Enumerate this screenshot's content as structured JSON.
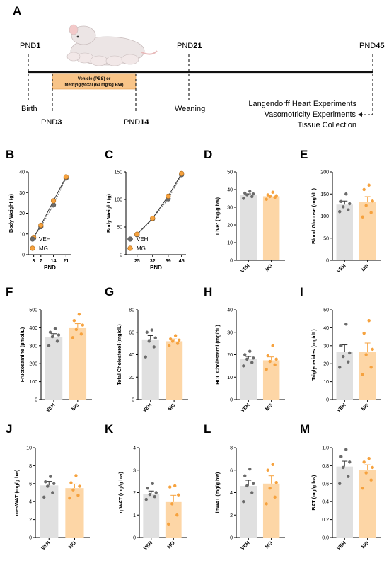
{
  "colors": {
    "veh_bar": "#e0e0e0",
    "mg_bar": "#fdd6a6",
    "veh_dot": "#6b6b6b",
    "mg_dot": "#f6a23e",
    "timeline_box": "#f8c488"
  },
  "timeline": {
    "panel_label": "A",
    "pnd1": {
      "prefix": "PND",
      "num": "1"
    },
    "pnd3": {
      "prefix": "PND",
      "num": "3"
    },
    "pnd14": {
      "prefix": "PND",
      "num": "14"
    },
    "pnd21": {
      "prefix": "PND",
      "num": "21"
    },
    "pnd45": {
      "prefix": "PND",
      "num": "45"
    },
    "birth": "Birth",
    "weaning": "Weaning",
    "treatment_line1": "Vehicle (PBS) or",
    "treatment_line2": "Methylglyoxal (60 mg/kg BW)",
    "experiments": [
      "Langendorff Heart Experiments",
      "Vasomotricity Experiments",
      "Tissue Collection"
    ],
    "illustration": "rat-with-pups-icon"
  },
  "chart_data": [
    {
      "panel": "B",
      "type": "line",
      "xlabel": "PND",
      "ylabel": "Body Weight (g)",
      "x": [
        3,
        7,
        14,
        21
      ],
      "xticks": [
        "3",
        "7",
        "14",
        "21"
      ],
      "xlim": [
        0,
        24
      ],
      "ylim": [
        0,
        40
      ],
      "yticks": [
        0,
        10,
        20,
        30,
        40
      ],
      "series": [
        {
          "name": "VEH",
          "values": [
            8,
            13.5,
            24,
            37
          ]
        },
        {
          "name": "MG",
          "values": [
            8.4,
            14.2,
            26,
            37.6
          ]
        }
      ],
      "legend": "bottom-left"
    },
    {
      "panel": "C",
      "type": "line",
      "xlabel": "PND",
      "ylabel": "Body Weight (g)",
      "x": [
        25,
        32,
        39,
        45
      ],
      "xticks": [
        "25",
        "32",
        "39",
        "45"
      ],
      "xlim": [
        20,
        47
      ],
      "ylim": [
        0,
        150
      ],
      "yticks": [
        0,
        50,
        100,
        150
      ],
      "series": [
        {
          "name": "VEH",
          "values": [
            36,
            65,
            101,
            145
          ]
        },
        {
          "name": "MG",
          "values": [
            37,
            66,
            106,
            147
          ]
        }
      ],
      "legend": "bottom-left"
    },
    {
      "panel": "D",
      "type": "bar",
      "ylabel": "Liver (mg/g bw)",
      "categories": [
        "VEH",
        "MG"
      ],
      "ylim": [
        0,
        50
      ],
      "yticks": [
        0,
        10,
        20,
        30,
        40,
        50
      ],
      "values": [
        36.8,
        36.2
      ],
      "errors": [
        0.8,
        0.8
      ],
      "points": [
        [
          35,
          36,
          37,
          37.5,
          38,
          39
        ],
        [
          34.5,
          35.5,
          36,
          36.5,
          37,
          38.5
        ]
      ]
    },
    {
      "panel": "E",
      "type": "bar",
      "ylabel": "Blood Glucose (mg/dL)",
      "categories": [
        "VEH",
        "MG"
      ],
      "ylim": [
        0,
        200
      ],
      "yticks": [
        0,
        50,
        100,
        150,
        200
      ],
      "values": [
        126,
        132
      ],
      "errors": [
        8,
        12
      ],
      "points": [
        [
          110,
          114,
          121,
          128,
          133,
          150
        ],
        [
          98,
          108,
          124,
          134,
          160,
          170
        ]
      ]
    },
    {
      "panel": "F",
      "type": "bar",
      "ylabel": "Fructosamine (μmol/L)",
      "categories": [
        "VEH",
        "MG"
      ],
      "ylim": [
        0,
        500
      ],
      "yticks": [
        0,
        100,
        200,
        300,
        400,
        500
      ],
      "values": [
        347,
        398
      ],
      "errors": [
        20,
        25
      ],
      "points": [
        [
          300,
          325,
          350,
          360,
          375,
          395
        ],
        [
          345,
          365,
          390,
          415,
          440,
          475
        ]
      ]
    },
    {
      "panel": "G",
      "type": "bar",
      "ylabel": "Total Cholesterol (mg/dL)",
      "categories": [
        "VEH",
        "MG"
      ],
      "ylim": [
        0,
        80
      ],
      "yticks": [
        0,
        20,
        40,
        60,
        80
      ],
      "values": [
        53,
        52
      ],
      "errors": [
        4,
        2
      ],
      "points": [
        [
          38,
          47,
          52,
          55,
          60,
          62
        ],
        [
          48,
          50,
          52,
          53,
          54,
          57
        ]
      ]
    },
    {
      "panel": "H",
      "type": "bar",
      "ylabel": "HDL Cholesterol (mg/dL)",
      "categories": [
        "VEH",
        "MG"
      ],
      "ylim": [
        0,
        40
      ],
      "yticks": [
        0,
        10,
        20,
        30,
        40
      ],
      "values": [
        18,
        17.5
      ],
      "errors": [
        1.2,
        1.5
      ],
      "points": [
        [
          15,
          16.5,
          18,
          18.5,
          20,
          21.5
        ],
        [
          13.5,
          15.5,
          17,
          18,
          19.5,
          24
        ]
      ]
    },
    {
      "panel": "I",
      "type": "bar",
      "ylabel": "Triglycerides (mg/dL)",
      "categories": [
        "VEH",
        "MG"
      ],
      "ylim": [
        0,
        50
      ],
      "yticks": [
        0,
        10,
        20,
        30,
        40,
        50
      ],
      "values": [
        26.5,
        26.5
      ],
      "errors": [
        4,
        5
      ],
      "points": [
        [
          18,
          21,
          24,
          26,
          30,
          42
        ],
        [
          14,
          18,
          25,
          28,
          37,
          44
        ]
      ]
    },
    {
      "panel": "J",
      "type": "bar",
      "ylabel": "mesWAT (mg/g bw)",
      "categories": [
        "VEH",
        "MG"
      ],
      "ylim": [
        0,
        10
      ],
      "yticks": [
        0,
        2,
        4,
        6,
        8,
        10
      ],
      "values": [
        5.8,
        5.5
      ],
      "errors": [
        0.45,
        0.45
      ],
      "points": [
        [
          4.5,
          5.0,
          5.7,
          6.0,
          6.2,
          6.8
        ],
        [
          4.4,
          4.7,
          5.3,
          5.7,
          6.1,
          6.9
        ]
      ]
    },
    {
      "panel": "K",
      "type": "bar",
      "ylabel": "rpWAT (mg/g bw)",
      "categories": [
        "VEH",
        "MG"
      ],
      "ylim": [
        0,
        4
      ],
      "yticks": [
        0,
        1,
        2,
        3,
        4
      ],
      "values": [
        1.95,
        1.58
      ],
      "errors": [
        0.12,
        0.3
      ],
      "points": [
        [
          1.7,
          1.82,
          1.92,
          2.0,
          2.2,
          2.4
        ],
        [
          0.6,
          1.0,
          1.5,
          1.9,
          2.25,
          2.3
        ]
      ]
    },
    {
      "panel": "L",
      "type": "bar",
      "ylabel": "inWAT (mg/g bw)",
      "categories": [
        "VEH",
        "MG"
      ],
      "ylim": [
        0,
        8
      ],
      "yticks": [
        0,
        2,
        4,
        6,
        8
      ],
      "values": [
        4.6,
        4.8
      ],
      "errors": [
        0.5,
        0.7
      ],
      "points": [
        [
          3.2,
          4.0,
          4.6,
          4.8,
          5.5,
          6.1
        ],
        [
          3.0,
          3.6,
          4.4,
          4.9,
          6.0,
          6.5
        ]
      ]
    },
    {
      "panel": "M",
      "type": "bar",
      "ylabel": "BAT (mg/g bw)",
      "categories": [
        "VEH",
        "MG"
      ],
      "ylim": [
        0,
        1.0
      ],
      "yticks": [
        "0.0",
        "0.2",
        "0.4",
        "0.6",
        "0.8",
        "1.0"
      ],
      "values": [
        0.79,
        0.75
      ],
      "errors": [
        0.06,
        0.06
      ],
      "points": [
        [
          0.6,
          0.68,
          0.78,
          0.84,
          0.9,
          0.98
        ],
        [
          0.55,
          0.64,
          0.72,
          0.78,
          0.84,
          0.88
        ]
      ]
    }
  ]
}
